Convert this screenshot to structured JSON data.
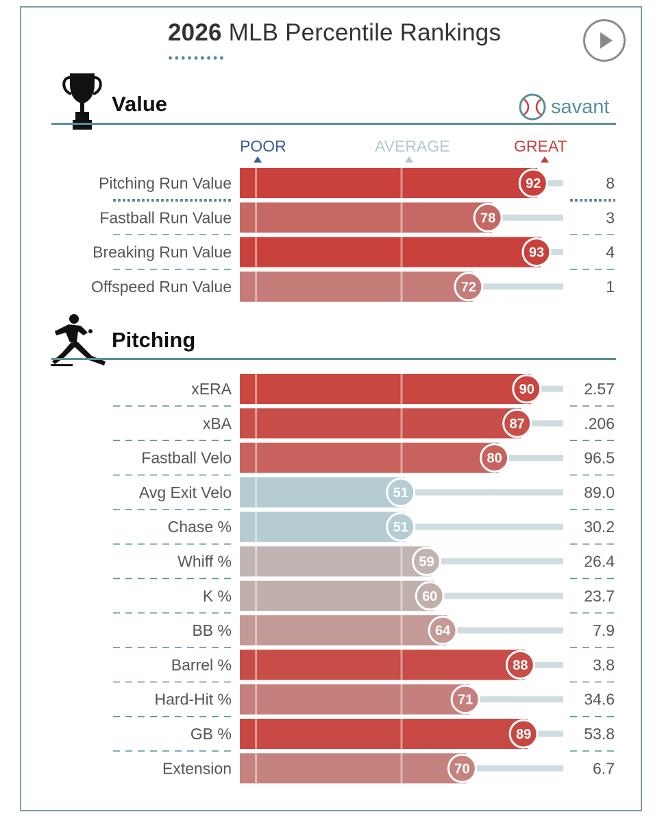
{
  "header": {
    "title_year": "2026",
    "title_rest": " MLB Percentile Rankings",
    "play_icon": "play-icon"
  },
  "sections": [
    {
      "title": "Value",
      "icon": "trophy-icon"
    },
    {
      "title": "Pitching",
      "icon": "pitcher-icon"
    }
  ],
  "brand": {
    "text": "savant",
    "icon": "baseball-icon"
  },
  "scale": {
    "poor": "POOR",
    "average": "AVERAGE",
    "great": "GREAT",
    "poor_color": "#3c5a99",
    "average_color": "#b4c8cc",
    "great_color": "#c4403d"
  },
  "chart_data": {
    "type": "bar",
    "orientation": "horizontal",
    "xlim": [
      0,
      100
    ],
    "groups": [
      {
        "section": "Value",
        "categories": [
          "Pitching Run Value",
          "Fastball Run Value",
          "Breaking Run Value",
          "Offspeed Run Value"
        ],
        "percentiles": [
          92,
          78,
          93,
          72
        ],
        "values": [
          "8",
          "3",
          "4",
          "1"
        ]
      },
      {
        "section": "Pitching",
        "categories": [
          "xERA",
          "xBA",
          "Fastball Velo",
          "Avg Exit Velo",
          "Chase %",
          "Whiff %",
          "K %",
          "BB %",
          "Barrel %",
          "Hard-Hit %",
          "GB %",
          "Extension"
        ],
        "percentiles": [
          90,
          87,
          80,
          51,
          51,
          59,
          60,
          64,
          88,
          71,
          89,
          70
        ],
        "values": [
          "2.57",
          ".206",
          "96.5",
          "89.0",
          "30.2",
          "26.4",
          "23.7",
          "7.9",
          "3.8",
          "34.6",
          "53.8",
          "6.7"
        ]
      }
    ]
  }
}
